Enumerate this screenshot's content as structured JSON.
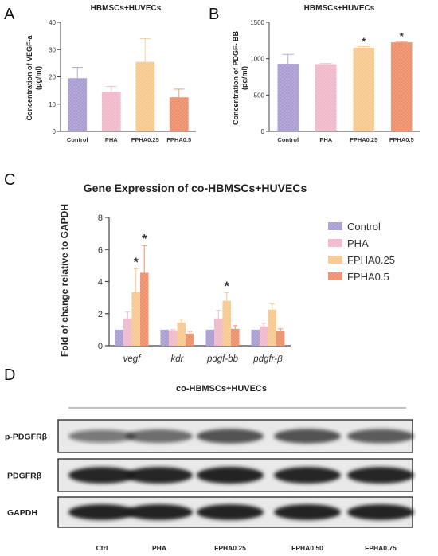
{
  "panels": {
    "A": "A",
    "B": "B",
    "C": "C",
    "D": "D"
  },
  "colors": {
    "Control": "#a99cd1",
    "PHA": "#f0b9ca",
    "FPHA0.25": "#f7c98e",
    "FPHA0.5": "#ec8f6a"
  },
  "chart_data": [
    {
      "type": "bar",
      "panel": "A",
      "title": "HBMSCs+HUVECs",
      "ylabel": "Concentration of VEGF-a\n(pg/ml)",
      "categories": [
        "Control",
        "PHA",
        "FPHA0.25",
        "FPHA0.5"
      ],
      "values": [
        19.5,
        14.5,
        25.5,
        12.5
      ],
      "errors": [
        4.0,
        2.0,
        8.5,
        3.0
      ],
      "significance": [
        "",
        "",
        "",
        ""
      ],
      "ylim": [
        0,
        40
      ],
      "yticks": [
        0,
        10,
        20,
        30,
        40
      ]
    },
    {
      "type": "bar",
      "panel": "B",
      "title": "HBMSCs+HUVECs",
      "ylabel": "Concentration of PDGF- BB\n(pg/ml)",
      "categories": [
        "Control",
        "PHA",
        "FPHA0.25",
        "FPHA0.5"
      ],
      "values": [
        930,
        925,
        1150,
        1225
      ],
      "errors": [
        130,
        10,
        15,
        10
      ],
      "significance": [
        "",
        "",
        "*",
        "*"
      ],
      "ylim": [
        0,
        1500
      ],
      "yticks": [
        0,
        500,
        1000,
        1500
      ]
    },
    {
      "type": "bar",
      "panel": "C",
      "title": "Gene Expression of co-HBMSCs+HUVECs",
      "ylabel": "Fold of change relative to GAPDH",
      "categories": [
        "vegf",
        "kdr",
        "pdgf-bb",
        "pdgfr-β"
      ],
      "series": [
        {
          "name": "Control",
          "values": [
            1.0,
            1.0,
            1.0,
            1.0
          ],
          "errors": [
            0.0,
            0.0,
            0.0,
            0.0
          ]
        },
        {
          "name": "PHA",
          "values": [
            1.7,
            0.95,
            1.7,
            1.2
          ],
          "errors": [
            0.4,
            0.05,
            0.5,
            0.2
          ]
        },
        {
          "name": "FPHA0.25",
          "values": [
            3.35,
            1.45,
            2.8,
            2.25
          ],
          "errors": [
            1.45,
            0.2,
            0.5,
            0.35
          ]
        },
        {
          "name": "FPHA0.5",
          "values": [
            4.55,
            0.75,
            1.05,
            0.9
          ],
          "errors": [
            1.7,
            0.15,
            0.2,
            0.15
          ]
        }
      ],
      "significance": [
        {
          "category": "vegf",
          "series": "FPHA0.25",
          "mark": "*"
        },
        {
          "category": "vegf",
          "series": "FPHA0.5",
          "mark": "*"
        },
        {
          "category": "pdgf-bb",
          "series": "FPHA0.25",
          "mark": "*"
        }
      ],
      "ylim": [
        0,
        8
      ],
      "yticks": [
        0,
        2,
        4,
        6,
        8
      ],
      "legend": "right"
    }
  ],
  "blot": {
    "title": "co-HBMSCs+HUVECs",
    "rows": [
      {
        "label": "p-PDGFRβ",
        "intensity": [
          0.35,
          0.45,
          0.6,
          0.6,
          0.55
        ]
      },
      {
        "label": "PDGFRβ",
        "intensity": [
          0.85,
          0.85,
          0.9,
          0.85,
          0.85
        ]
      },
      {
        "label": "GAPDH",
        "intensity": [
          0.9,
          0.9,
          0.9,
          0.9,
          0.9
        ]
      }
    ],
    "lanes": [
      "Ctrl",
      "PHA",
      "FPHA0.25",
      "FPHA0.50",
      "FPHA0.75"
    ]
  }
}
